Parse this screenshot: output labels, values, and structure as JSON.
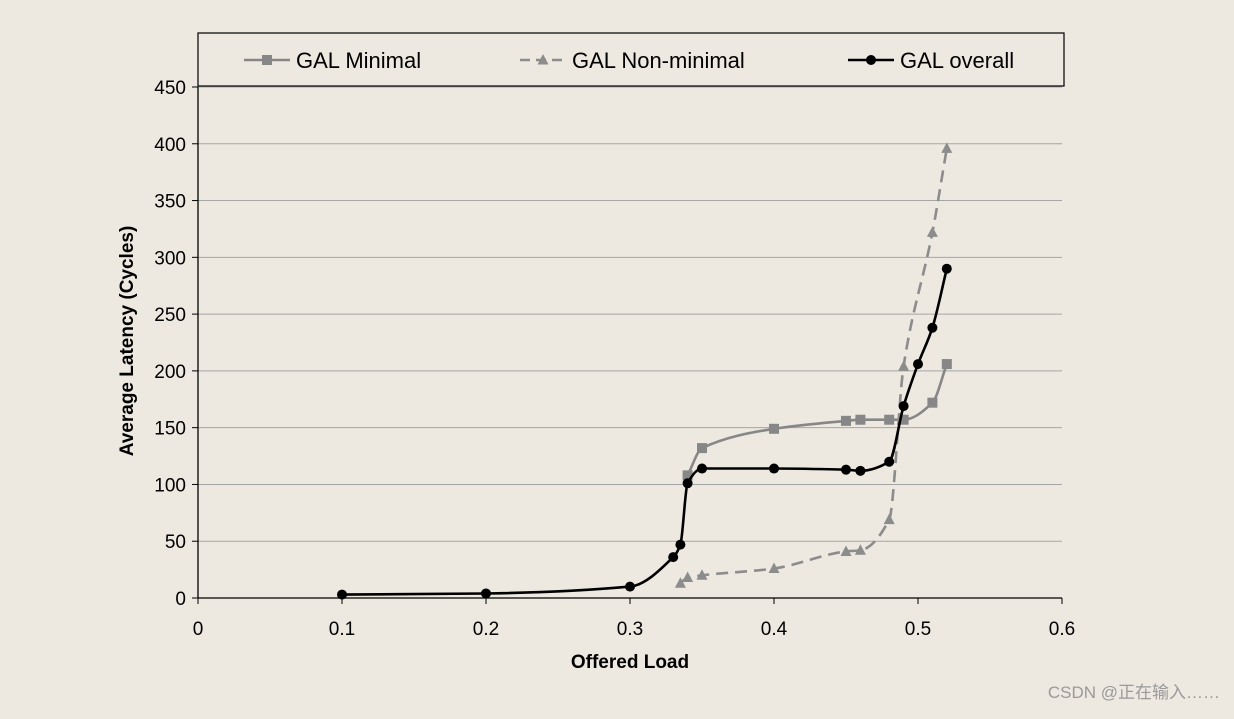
{
  "watermark": "CSDN @正在输入……",
  "chart_data": {
    "type": "line",
    "title": "",
    "xlabel": "Offered Load",
    "ylabel": "Average Latency (Cycles)",
    "xlim": [
      0,
      0.6
    ],
    "ylim": [
      0,
      450
    ],
    "xticks": [
      0,
      0.1,
      0.2,
      0.3,
      0.4,
      0.5,
      0.6
    ],
    "xtick_labels": [
      "0",
      "0.1",
      "0.2",
      "0.3",
      "0.4",
      "0.5",
      "0.6"
    ],
    "yticks": [
      0,
      50,
      100,
      150,
      200,
      250,
      300,
      350,
      400,
      450
    ],
    "ytick_labels": [
      "0",
      "50",
      "100",
      "150",
      "200",
      "250",
      "300",
      "350",
      "400",
      "450"
    ],
    "grid": "horizontal",
    "legend_position": "top",
    "series": [
      {
        "name": "GAL Minimal",
        "color": "#878787",
        "marker": "square",
        "dash": "solid",
        "x": [
          0.34,
          0.35,
          0.4,
          0.45,
          0.46,
          0.48,
          0.49,
          0.51,
          0.52
        ],
        "y": [
          108,
          132,
          149,
          156,
          157,
          157,
          157,
          172,
          206
        ]
      },
      {
        "name": "GAL Non-minimal",
        "color": "#8c8c8c",
        "marker": "triangle",
        "dash": "dashed",
        "x": [
          0.335,
          0.34,
          0.35,
          0.4,
          0.45,
          0.46,
          0.48,
          0.49,
          0.51,
          0.52
        ],
        "y": [
          13,
          18,
          20,
          26,
          41,
          42,
          69,
          204,
          322,
          396
        ]
      },
      {
        "name": "GAL overall",
        "color": "#000000",
        "marker": "circle",
        "dash": "solid",
        "x": [
          0.1,
          0.2,
          0.3,
          0.33,
          0.335,
          0.34,
          0.35,
          0.4,
          0.45,
          0.46,
          0.48,
          0.49,
          0.5,
          0.51,
          0.52
        ],
        "y": [
          3,
          4,
          10,
          36,
          47,
          101,
          114,
          114,
          113,
          112,
          120,
          169,
          206,
          238,
          290
        ]
      }
    ]
  }
}
